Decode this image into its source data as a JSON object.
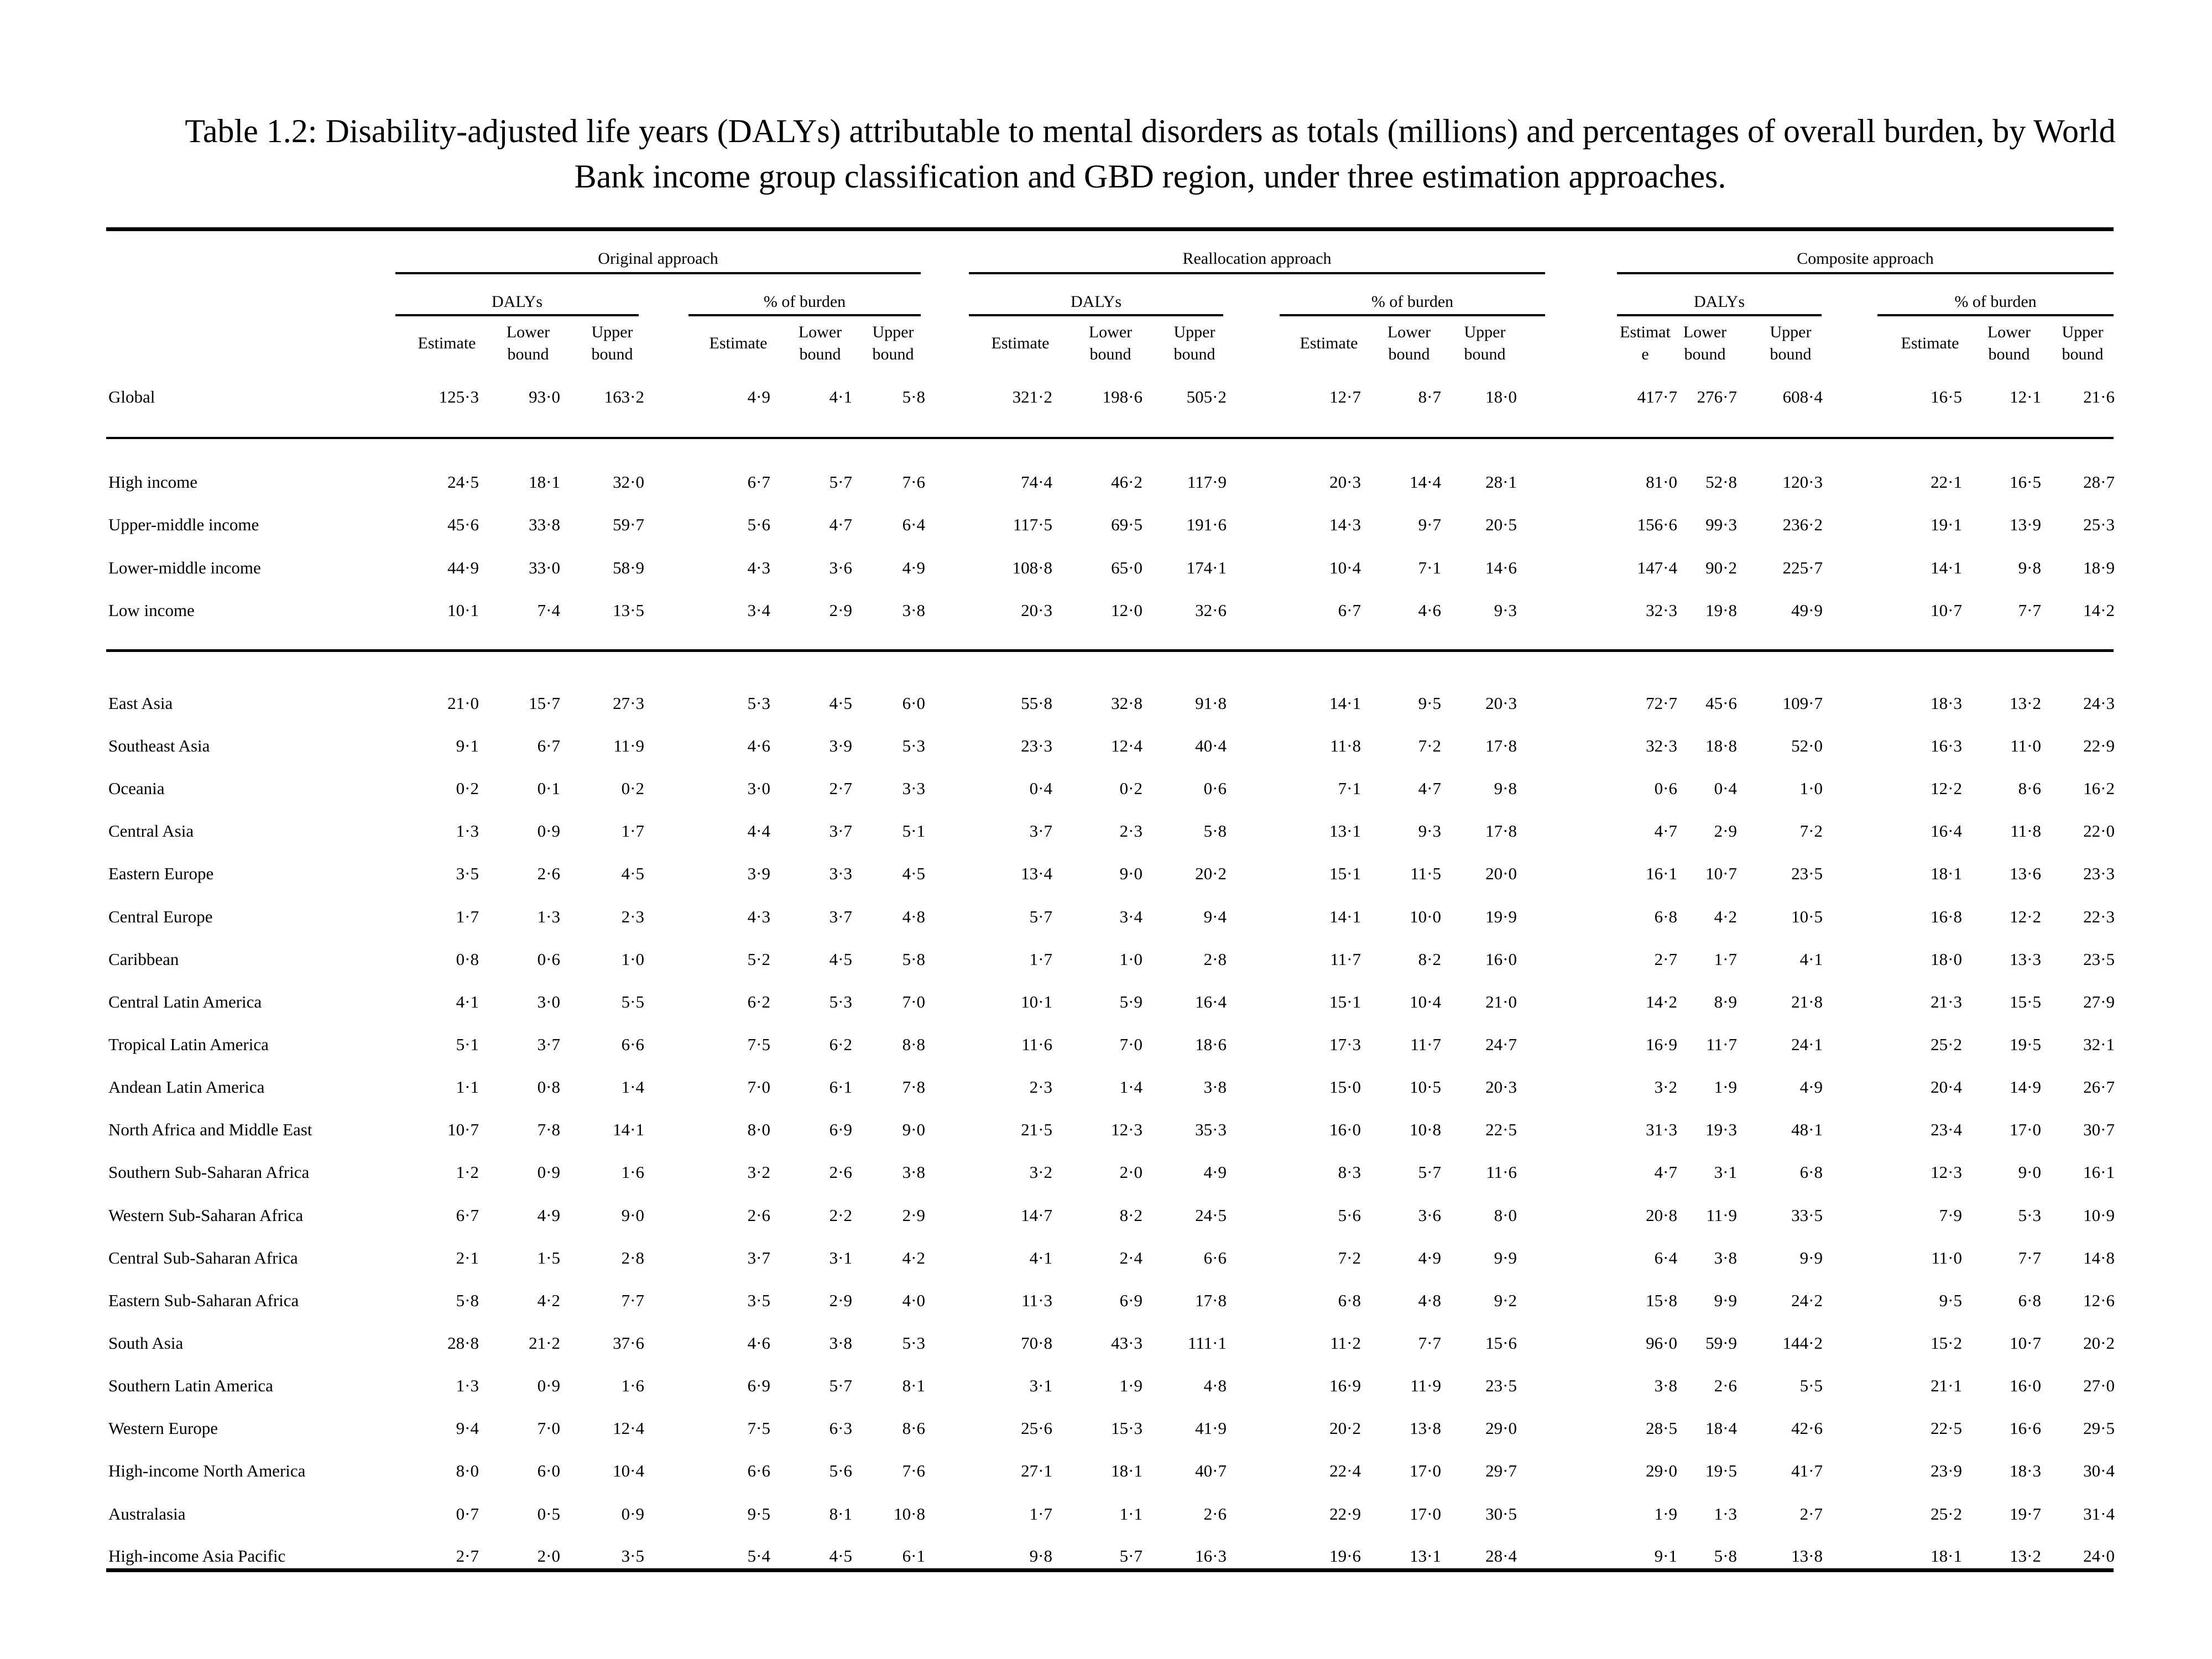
{
  "caption": "Table 1.2: Disability-adjusted life years (DALYs) attributable to mental disorders as totals (millions) and percentages of overall burden, by World Bank income group classification and GBD region, under three estimation approaches.",
  "approaches": [
    "Original approach",
    "Reallocation approach",
    "Composite approach"
  ],
  "subgroups": [
    "DALYs",
    "% of burden"
  ],
  "column_headers": [
    "Estimate",
    "Lower bound",
    "Upper bound",
    "Estimate",
    "Lower bound",
    "Upper bound",
    "Estimate",
    "Lower bound",
    "Upper bound",
    "Estimate",
    "Lower bound",
    "Upper bound",
    "Estimat e",
    "Lower bound",
    "Upper bound",
    "Estimate",
    "Lower bound",
    "Upper bound"
  ],
  "rows": [
    {
      "label": "Global",
      "values": [
        "125·3",
        "93·0",
        "163·2",
        "4·9",
        "4·1",
        "5·8",
        "321·2",
        "198·6",
        "505·2",
        "12·7",
        "8·7",
        "18·0",
        "417·7",
        "276·7",
        "608·4",
        "16·5",
        "12·1",
        "21·6"
      ]
    },
    {
      "label": "High income",
      "values": [
        "24·5",
        "18·1",
        "32·0",
        "6·7",
        "5·7",
        "7·6",
        "74·4",
        "46·2",
        "117·9",
        "20·3",
        "14·4",
        "28·1",
        "81·0",
        "52·8",
        "120·3",
        "22·1",
        "16·5",
        "28·7"
      ]
    },
    {
      "label": "Upper-middle income",
      "values": [
        "45·6",
        "33·8",
        "59·7",
        "5·6",
        "4·7",
        "6·4",
        "117·5",
        "69·5",
        "191·6",
        "14·3",
        "9·7",
        "20·5",
        "156·6",
        "99·3",
        "236·2",
        "19·1",
        "13·9",
        "25·3"
      ]
    },
    {
      "label": "Lower-middle income",
      "values": [
        "44·9",
        "33·0",
        "58·9",
        "4·3",
        "3·6",
        "4·9",
        "108·8",
        "65·0",
        "174·1",
        "10·4",
        "7·1",
        "14·6",
        "147·4",
        "90·2",
        "225·7",
        "14·1",
        "9·8",
        "18·9"
      ]
    },
    {
      "label": "Low income",
      "values": [
        "10·1",
        "7·4",
        "13·5",
        "3·4",
        "2·9",
        "3·8",
        "20·3",
        "12·0",
        "32·6",
        "6·7",
        "4·6",
        "9·3",
        "32·3",
        "19·8",
        "49·9",
        "10·7",
        "7·7",
        "14·2"
      ]
    },
    {
      "label": "East Asia",
      "values": [
        "21·0",
        "15·7",
        "27·3",
        "5·3",
        "4·5",
        "6·0",
        "55·8",
        "32·8",
        "91·8",
        "14·1",
        "9·5",
        "20·3",
        "72·7",
        "45·6",
        "109·7",
        "18·3",
        "13·2",
        "24·3"
      ]
    },
    {
      "label": "Southeast Asia",
      "values": [
        "9·1",
        "6·7",
        "11·9",
        "4·6",
        "3·9",
        "5·3",
        "23·3",
        "12·4",
        "40·4",
        "11·8",
        "7·2",
        "17·8",
        "32·3",
        "18·8",
        "52·0",
        "16·3",
        "11·0",
        "22·9"
      ]
    },
    {
      "label": "Oceania",
      "values": [
        "0·2",
        "0·1",
        "0·2",
        "3·0",
        "2·7",
        "3·3",
        "0·4",
        "0·2",
        "0·6",
        "7·1",
        "4·7",
        "9·8",
        "0·6",
        "0·4",
        "1·0",
        "12·2",
        "8·6",
        "16·2"
      ]
    },
    {
      "label": "Central Asia",
      "values": [
        "1·3",
        "0·9",
        "1·7",
        "4·4",
        "3·7",
        "5·1",
        "3·7",
        "2·3",
        "5·8",
        "13·1",
        "9·3",
        "17·8",
        "4·7",
        "2·9",
        "7·2",
        "16·4",
        "11·8",
        "22·0"
      ]
    },
    {
      "label": "Eastern Europe",
      "values": [
        "3·5",
        "2·6",
        "4·5",
        "3·9",
        "3·3",
        "4·5",
        "13·4",
        "9·0",
        "20·2",
        "15·1",
        "11·5",
        "20·0",
        "16·1",
        "10·7",
        "23·5",
        "18·1",
        "13·6",
        "23·3"
      ]
    },
    {
      "label": "Central Europe",
      "values": [
        "1·7",
        "1·3",
        "2·3",
        "4·3",
        "3·7",
        "4·8",
        "5·7",
        "3·4",
        "9·4",
        "14·1",
        "10·0",
        "19·9",
        "6·8",
        "4·2",
        "10·5",
        "16·8",
        "12·2",
        "22·3"
      ]
    },
    {
      "label": "Caribbean",
      "values": [
        "0·8",
        "0·6",
        "1·0",
        "5·2",
        "4·5",
        "5·8",
        "1·7",
        "1·0",
        "2·8",
        "11·7",
        "8·2",
        "16·0",
        "2·7",
        "1·7",
        "4·1",
        "18·0",
        "13·3",
        "23·5"
      ]
    },
    {
      "label": "Central Latin America",
      "values": [
        "4·1",
        "3·0",
        "5·5",
        "6·2",
        "5·3",
        "7·0",
        "10·1",
        "5·9",
        "16·4",
        "15·1",
        "10·4",
        "21·0",
        "14·2",
        "8·9",
        "21·8",
        "21·3",
        "15·5",
        "27·9"
      ]
    },
    {
      "label": "Tropical Latin America",
      "values": [
        "5·1",
        "3·7",
        "6·6",
        "7·5",
        "6·2",
        "8·8",
        "11·6",
        "7·0",
        "18·6",
        "17·3",
        "11·7",
        "24·7",
        "16·9",
        "11·7",
        "24·1",
        "25·2",
        "19·5",
        "32·1"
      ]
    },
    {
      "label": "Andean Latin America",
      "values": [
        "1·1",
        "0·8",
        "1·4",
        "7·0",
        "6·1",
        "7·8",
        "2·3",
        "1·4",
        "3·8",
        "15·0",
        "10·5",
        "20·3",
        "3·2",
        "1·9",
        "4·9",
        "20·4",
        "14·9",
        "26·7"
      ]
    },
    {
      "label": "North Africa and Middle East",
      "values": [
        "10·7",
        "7·8",
        "14·1",
        "8·0",
        "6·9",
        "9·0",
        "21·5",
        "12·3",
        "35·3",
        "16·0",
        "10·8",
        "22·5",
        "31·3",
        "19·3",
        "48·1",
        "23·4",
        "17·0",
        "30·7"
      ]
    },
    {
      "label": "Southern Sub-Saharan Africa",
      "values": [
        "1·2",
        "0·9",
        "1·6",
        "3·2",
        "2·6",
        "3·8",
        "3·2",
        "2·0",
        "4·9",
        "8·3",
        "5·7",
        "11·6",
        "4·7",
        "3·1",
        "6·8",
        "12·3",
        "9·0",
        "16·1"
      ]
    },
    {
      "label": "Western Sub-Saharan Africa",
      "values": [
        "6·7",
        "4·9",
        "9·0",
        "2·6",
        "2·2",
        "2·9",
        "14·7",
        "8·2",
        "24·5",
        "5·6",
        "3·6",
        "8·0",
        "20·8",
        "11·9",
        "33·5",
        "7·9",
        "5·3",
        "10·9"
      ]
    },
    {
      "label": "Central Sub-Saharan Africa",
      "values": [
        "2·1",
        "1·5",
        "2·8",
        "3·7",
        "3·1",
        "4·2",
        "4·1",
        "2·4",
        "6·6",
        "7·2",
        "4·9",
        "9·9",
        "6·4",
        "3·8",
        "9·9",
        "11·0",
        "7·7",
        "14·8"
      ]
    },
    {
      "label": "Eastern Sub-Saharan Africa",
      "values": [
        "5·8",
        "4·2",
        "7·7",
        "3·5",
        "2·9",
        "4·0",
        "11·3",
        "6·9",
        "17·8",
        "6·8",
        "4·8",
        "9·2",
        "15·8",
        "9·9",
        "24·2",
        "9·5",
        "6·8",
        "12·6"
      ]
    },
    {
      "label": "South Asia",
      "values": [
        "28·8",
        "21·2",
        "37·6",
        "4·6",
        "3·8",
        "5·3",
        "70·8",
        "43·3",
        "111·1",
        "11·2",
        "7·7",
        "15·6",
        "96·0",
        "59·9",
        "144·2",
        "15·2",
        "10·7",
        "20·2"
      ]
    },
    {
      "label": "Southern Latin America",
      "values": [
        "1·3",
        "0·9",
        "1·6",
        "6·9",
        "5·7",
        "8·1",
        "3·1",
        "1·9",
        "4·8",
        "16·9",
        "11·9",
        "23·5",
        "3·8",
        "2·6",
        "5·5",
        "21·1",
        "16·0",
        "27·0"
      ]
    },
    {
      "label": "Western Europe",
      "values": [
        "9·4",
        "7·0",
        "12·4",
        "7·5",
        "6·3",
        "8·6",
        "25·6",
        "15·3",
        "41·9",
        "20·2",
        "13·8",
        "29·0",
        "28·5",
        "18·4",
        "42·6",
        "22·5",
        "16·6",
        "29·5"
      ]
    },
    {
      "label": "High-income North America",
      "values": [
        "8·0",
        "6·0",
        "10·4",
        "6·6",
        "5·6",
        "7·6",
        "27·1",
        "18·1",
        "40·7",
        "22·4",
        "17·0",
        "29·7",
        "29·0",
        "19·5",
        "41·7",
        "23·9",
        "18·3",
        "30·4"
      ]
    },
    {
      "label": "Australasia",
      "values": [
        "0·7",
        "0·5",
        "0·9",
        "9·5",
        "8·1",
        "10·8",
        "1·7",
        "1·1",
        "2·6",
        "22·9",
        "17·0",
        "30·5",
        "1·9",
        "1·3",
        "2·7",
        "25·2",
        "19·7",
        "31·4"
      ]
    },
    {
      "label": "High-income Asia Pacific",
      "values": [
        "2·7",
        "2·0",
        "3·5",
        "5·4",
        "4·5",
        "6·1",
        "9·8",
        "5·7",
        "16·3",
        "19·6",
        "13·1",
        "28·4",
        "9·1",
        "5·8",
        "13·8",
        "18·1",
        "13·2",
        "24·0"
      ]
    }
  ]
}
